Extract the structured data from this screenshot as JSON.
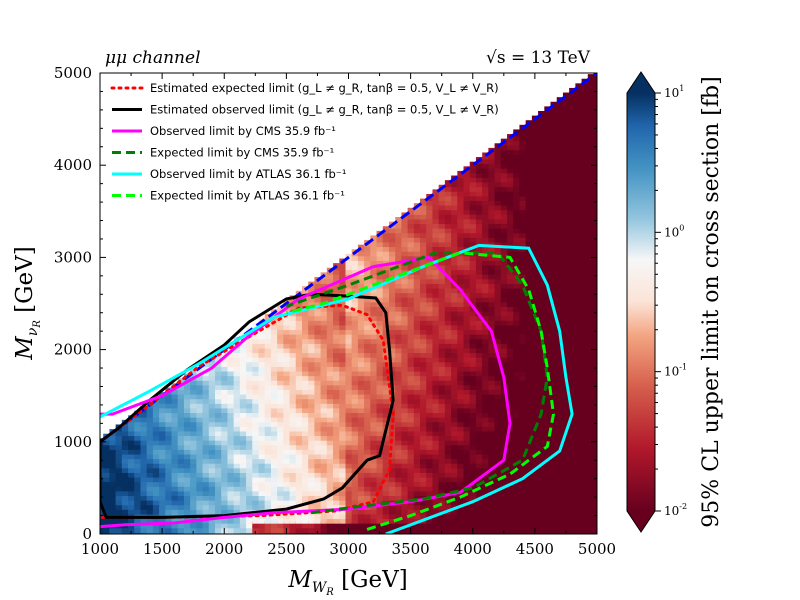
{
  "chart_data": {
    "type": "heatmap",
    "channel_label": "μμ channel",
    "energy_label": "√s = 13 TeV",
    "xlabel": "M_{W_R} [GeV]",
    "ylabel": "M_{ν_R} [GeV]",
    "xlim": [
      1000,
      5000
    ],
    "ylim": [
      0,
      5000
    ],
    "x_ticks": [
      1000,
      1500,
      2000,
      2500,
      3000,
      3500,
      4000,
      4500,
      5000
    ],
    "y_ticks": [
      0,
      1000,
      2000,
      3000,
      4000,
      5000
    ],
    "colorbar": {
      "label": "95% CL upper limit on cross section [fb]",
      "scale": "log",
      "min": 0.01,
      "max": 10,
      "tick_labels": [
        "10^1",
        "10^0",
        "10^-1",
        "10^-2"
      ],
      "colormap": "RdBu",
      "low_color": "#67001f",
      "mid_color": "#f7f7f7",
      "high_color": "#053061"
    },
    "diagonal_line": {
      "color": "#0000ff",
      "style": "dashed",
      "points": [
        [
          1000,
          1000
        ],
        [
          5000,
          5000
        ]
      ]
    },
    "legend_placement": "upper-left",
    "series": [
      {
        "name": "Estimated expected limit (g_L ≠ g_R, tanβ = 0.5, V_L ≠ V_R)",
        "color": "#ff0000",
        "style": "dotted",
        "points": [
          [
            1000,
            1000
          ],
          [
            1400,
            1400
          ],
          [
            1800,
            1820
          ],
          [
            2200,
            2140
          ],
          [
            2600,
            2450
          ],
          [
            2950,
            2480
          ],
          [
            3150,
            2380
          ],
          [
            3280,
            2100
          ],
          [
            3360,
            1300
          ],
          [
            3330,
            700
          ],
          [
            3200,
            350
          ],
          [
            2900,
            250
          ],
          [
            2300,
            200
          ],
          [
            1500,
            180
          ],
          [
            1000,
            180
          ]
        ]
      },
      {
        "name": "Estimated observed limit (g_L ≠ g_R, tanβ = 0.5, V_L ≠ V_R)",
        "color": "#000000",
        "style": "solid",
        "points": [
          [
            1000,
            1000
          ],
          [
            1000,
            350
          ],
          [
            1050,
            180
          ],
          [
            1500,
            180
          ],
          [
            2000,
            200
          ],
          [
            2500,
            270
          ],
          [
            2800,
            380
          ],
          [
            2950,
            500
          ],
          [
            3150,
            800
          ],
          [
            3250,
            850
          ],
          [
            3360,
            1450
          ],
          [
            3330,
            2000
          ],
          [
            3300,
            2400
          ],
          [
            3220,
            2560
          ],
          [
            3000,
            2580
          ],
          [
            2700,
            2600
          ],
          [
            2500,
            2550
          ],
          [
            2200,
            2300
          ],
          [
            2000,
            2050
          ],
          [
            1700,
            1780
          ],
          [
            1400,
            1450
          ],
          [
            1150,
            1150
          ],
          [
            1000,
            1000
          ]
        ]
      },
      {
        "name": "Observed limit by CMS 35.9 fb⁻¹",
        "color": "#ff00ff",
        "style": "solid",
        "points": [
          [
            1000,
            80
          ],
          [
            1200,
            100
          ],
          [
            1600,
            120
          ],
          [
            2000,
            180
          ],
          [
            2400,
            230
          ],
          [
            3000,
            270
          ],
          [
            3500,
            350
          ],
          [
            3900,
            450
          ],
          [
            4250,
            800
          ],
          [
            4300,
            1200
          ],
          [
            4250,
            1700
          ],
          [
            4150,
            2200
          ],
          [
            3900,
            2650
          ],
          [
            3650,
            3000
          ],
          [
            3200,
            2900
          ],
          [
            2600,
            2550
          ],
          [
            2200,
            2150
          ],
          [
            1900,
            1800
          ],
          [
            1500,
            1500
          ],
          [
            1100,
            1300
          ],
          [
            1000,
            1300
          ]
        ]
      },
      {
        "name": "Expected limit by CMS 35.9 fb⁻¹",
        "color": "#008000",
        "style": "dashed",
        "points": [
          [
            2700,
            230
          ],
          [
            3100,
            300
          ],
          [
            3600,
            380
          ],
          [
            4000,
            500
          ],
          [
            4400,
            800
          ],
          [
            4550,
            1300
          ],
          [
            4600,
            1700
          ],
          [
            4550,
            2200
          ],
          [
            4400,
            2700
          ],
          [
            4200,
            3050
          ],
          [
            3700,
            3050
          ],
          [
            3000,
            2700
          ],
          [
            2500,
            2470
          ]
        ]
      },
      {
        "name": "Observed limit by ATLAS 36.1 fb⁻¹",
        "color": "#00ffff",
        "style": "solid",
        "points": [
          [
            3300,
            0
          ],
          [
            3600,
            150
          ],
          [
            4000,
            350
          ],
          [
            4400,
            600
          ],
          [
            4700,
            900
          ],
          [
            4800,
            1300
          ],
          [
            4750,
            1700
          ],
          [
            4700,
            2200
          ],
          [
            4600,
            2700
          ],
          [
            4450,
            3100
          ],
          [
            4050,
            3130
          ],
          [
            3600,
            2900
          ],
          [
            3000,
            2550
          ],
          [
            2400,
            2350
          ],
          [
            1800,
            1850
          ],
          [
            1400,
            1550
          ],
          [
            1000,
            1270
          ]
        ]
      },
      {
        "name": "Expected limit by ATLAS 36.1 fb⁻¹",
        "color": "#00ff00",
        "style": "dashed",
        "points": [
          [
            3150,
            50
          ],
          [
            3500,
            200
          ],
          [
            3900,
            400
          ],
          [
            4300,
            650
          ],
          [
            4600,
            950
          ],
          [
            4650,
            1300
          ],
          [
            4600,
            1800
          ],
          [
            4550,
            2200
          ],
          [
            4450,
            2650
          ],
          [
            4300,
            3000
          ],
          [
            3900,
            3050
          ],
          [
            3400,
            2800
          ],
          [
            2800,
            2500
          ],
          [
            2500,
            2400
          ]
        ]
      }
    ]
  }
}
